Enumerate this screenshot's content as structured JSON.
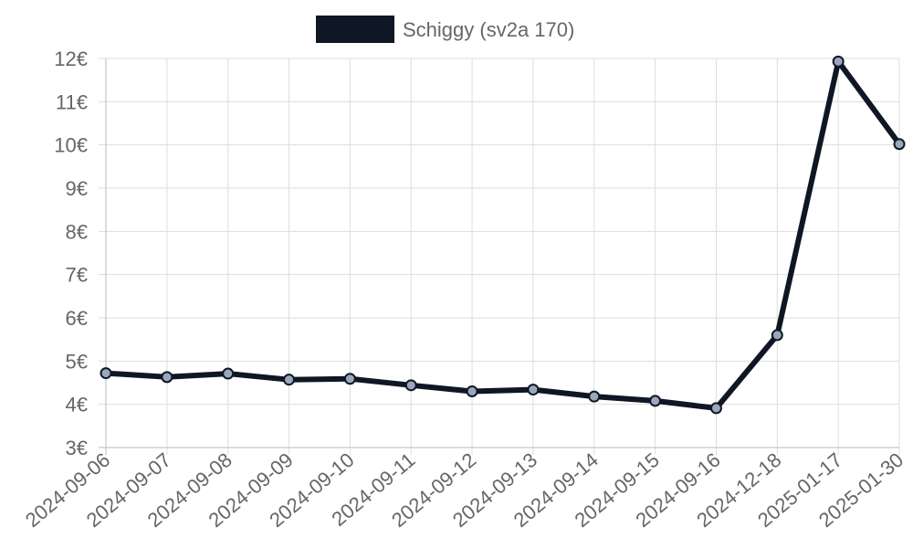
{
  "colors": {
    "line": "#0f1724",
    "point_fill": "#9aa7bd",
    "grid": "#dddddd",
    "axis": "#bbbbbb",
    "text": "#666666"
  },
  "chart_data": {
    "type": "line",
    "x": [
      "2024-09-06",
      "2024-09-07",
      "2024-09-08",
      "2024-09-09",
      "2024-09-10",
      "2024-09-11",
      "2024-09-12",
      "2024-09-13",
      "2024-09-14",
      "2024-09-15",
      "2024-09-16",
      "2024-12-18",
      "2025-01-17",
      "2025-01-30"
    ],
    "series": [
      {
        "name": "Schiggy (sv2a 170)",
        "values": [
          4.72,
          4.63,
          4.71,
          4.57,
          4.59,
          4.44,
          4.3,
          4.34,
          4.18,
          4.08,
          3.91,
          5.6,
          11.93,
          10.02
        ]
      }
    ],
    "ylim": [
      3,
      12
    ],
    "yticks": [
      "3€",
      "4€",
      "5€",
      "6€",
      "7€",
      "8€",
      "9€",
      "10€",
      "11€",
      "12€"
    ],
    "grid": true,
    "legend": "top-center"
  }
}
